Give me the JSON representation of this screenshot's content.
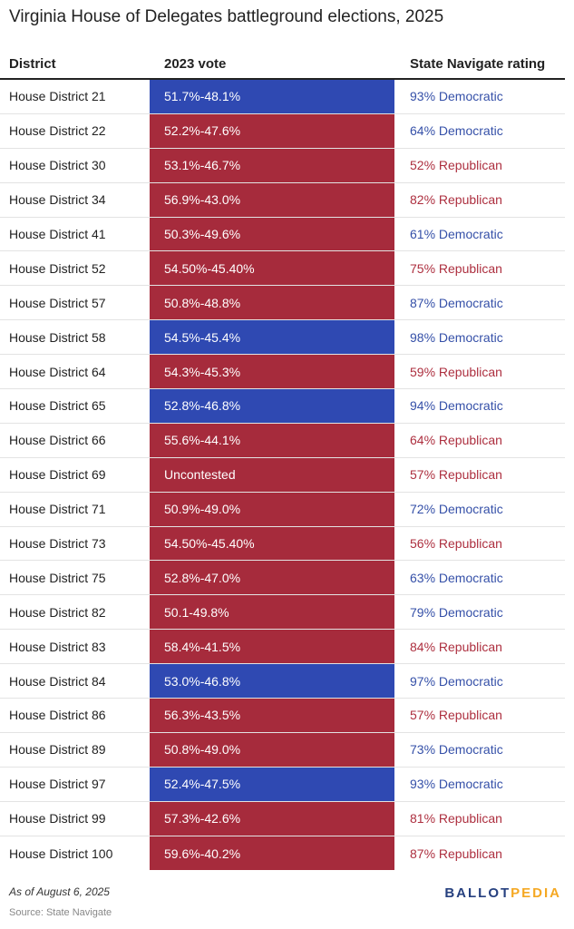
{
  "title": "Virginia House of Delegates battleground elections, 2025",
  "chart_data": {
    "type": "table",
    "columns": [
      "District",
      "2023 vote",
      "State Navigate rating"
    ],
    "rows": [
      {
        "district": "House District 21",
        "vote": "51.7%-48.1%",
        "winner": "D",
        "rating": "93% Democratic",
        "rating_party": "D"
      },
      {
        "district": "House District 22",
        "vote": "52.2%-47.6%",
        "winner": "R",
        "rating": "64% Democratic",
        "rating_party": "D"
      },
      {
        "district": "House District 30",
        "vote": "53.1%-46.7%",
        "winner": "R",
        "rating": "52% Republican",
        "rating_party": "R"
      },
      {
        "district": "House District 34",
        "vote": "56.9%-43.0%",
        "winner": "R",
        "rating": "82% Republican",
        "rating_party": "R"
      },
      {
        "district": "House District 41",
        "vote": "50.3%-49.6%",
        "winner": "R",
        "rating": "61% Democratic",
        "rating_party": "D"
      },
      {
        "district": "House District 52",
        "vote": "54.50%-45.40%",
        "winner": "R",
        "rating": "75% Republican",
        "rating_party": "R"
      },
      {
        "district": "House District 57",
        "vote": "50.8%-48.8%",
        "winner": "R",
        "rating": "87% Democratic",
        "rating_party": "D"
      },
      {
        "district": "House District 58",
        "vote": "54.5%-45.4%",
        "winner": "D",
        "rating": "98% Democratic",
        "rating_party": "D"
      },
      {
        "district": "House District 64",
        "vote": "54.3%-45.3%",
        "winner": "R",
        "rating": "59% Republican",
        "rating_party": "R"
      },
      {
        "district": "House District 65",
        "vote": "52.8%-46.8%",
        "winner": "D",
        "rating": "94% Democratic",
        "rating_party": "D"
      },
      {
        "district": "House District 66",
        "vote": "55.6%-44.1%",
        "winner": "R",
        "rating": "64% Republican",
        "rating_party": "R"
      },
      {
        "district": "House District 69",
        "vote": "Uncontested",
        "winner": "R",
        "rating": "57% Republican",
        "rating_party": "R"
      },
      {
        "district": "House District 71",
        "vote": "50.9%-49.0%",
        "winner": "R",
        "rating": "72% Democratic",
        "rating_party": "D"
      },
      {
        "district": "House District 73",
        "vote": "54.50%-45.40%",
        "winner": "R",
        "rating": "56% Republican",
        "rating_party": "R"
      },
      {
        "district": "House District 75",
        "vote": "52.8%-47.0%",
        "winner": "R",
        "rating": "63% Democratic",
        "rating_party": "D"
      },
      {
        "district": "House District 82",
        "vote": "50.1-49.8%",
        "winner": "R",
        "rating": "79% Democratic",
        "rating_party": "D"
      },
      {
        "district": "House District 83",
        "vote": "58.4%-41.5%",
        "winner": "R",
        "rating": "84% Republican",
        "rating_party": "R"
      },
      {
        "district": "House District 84",
        "vote": "53.0%-46.8%",
        "winner": "D",
        "rating": "97% Democratic",
        "rating_party": "D"
      },
      {
        "district": "House District 86",
        "vote": "56.3%-43.5%",
        "winner": "R",
        "rating": "57% Republican",
        "rating_party": "R"
      },
      {
        "district": "House District 89",
        "vote": "50.8%-49.0%",
        "winner": "R",
        "rating": "73% Democratic",
        "rating_party": "D"
      },
      {
        "district": "House District 97",
        "vote": "52.4%-47.5%",
        "winner": "D",
        "rating": "93% Democratic",
        "rating_party": "D"
      },
      {
        "district": "House District 99",
        "vote": "57.3%-42.6%",
        "winner": "R",
        "rating": "81% Republican",
        "rating_party": "R"
      },
      {
        "district": "House District 100",
        "vote": "59.6%-40.2%",
        "winner": "R",
        "rating": "87% Republican",
        "rating_party": "R"
      }
    ]
  },
  "colors": {
    "D_fill": "#2f49b2",
    "R_fill": "#a62b3c",
    "D_text": "#3550a8",
    "R_text": "#ad2f3f",
    "logo_ballot": "#26407f",
    "logo_pedia": "#f5a823"
  },
  "footer": {
    "date": "As of August 6, 2025",
    "source": "Source: State Navigate"
  },
  "logo": {
    "part1": "BALLOT",
    "part2": "PEDIA"
  }
}
